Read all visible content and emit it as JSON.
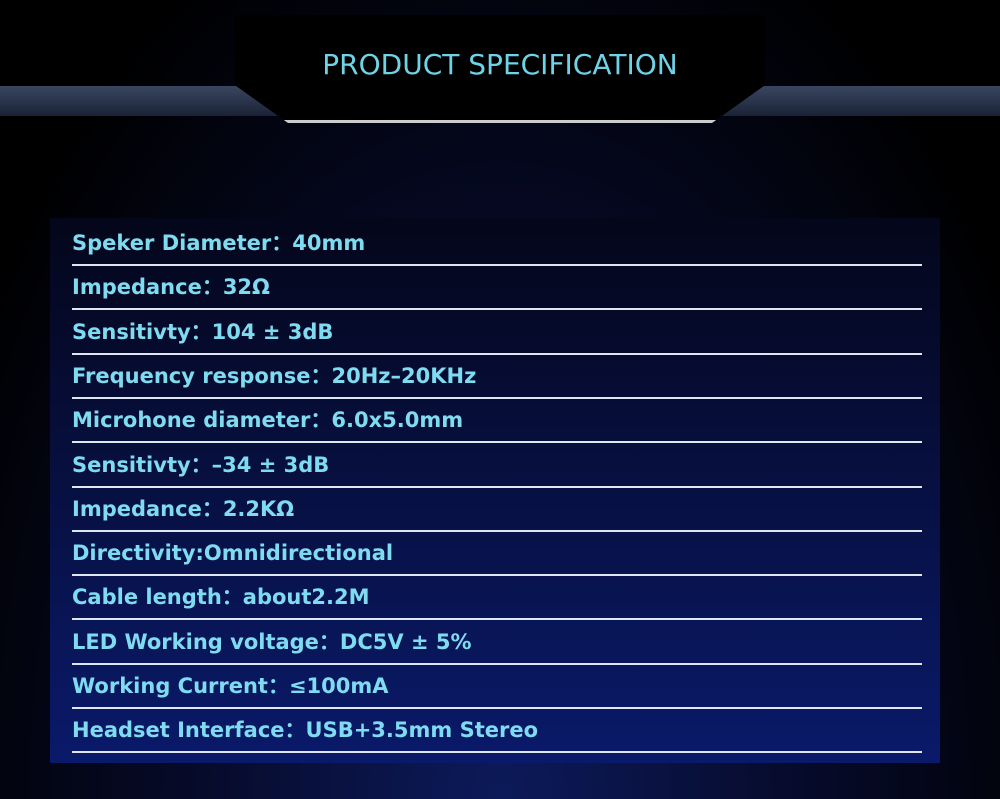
{
  "header": {
    "title": "PRODUCT SPECIFICATION"
  },
  "specs": [
    "Speker Diameter：40mm",
    "Impedance：32Ω",
    "Sensitivty：104 ± 3dB",
    "Frequency response：20Hz–20KHz",
    "Microhone diameter：6.0x5.0mm",
    "Sensitivty：–34 ± 3dB",
    "Impedance：2.2KΩ",
    "Directivity:Omnidirectional",
    "Cable length：about2.2M",
    "LED Working voltage：DC5V ± 5%",
    "Working Current：≤100mA",
    "Headset Interface：USB+3.5mm Stereo"
  ]
}
